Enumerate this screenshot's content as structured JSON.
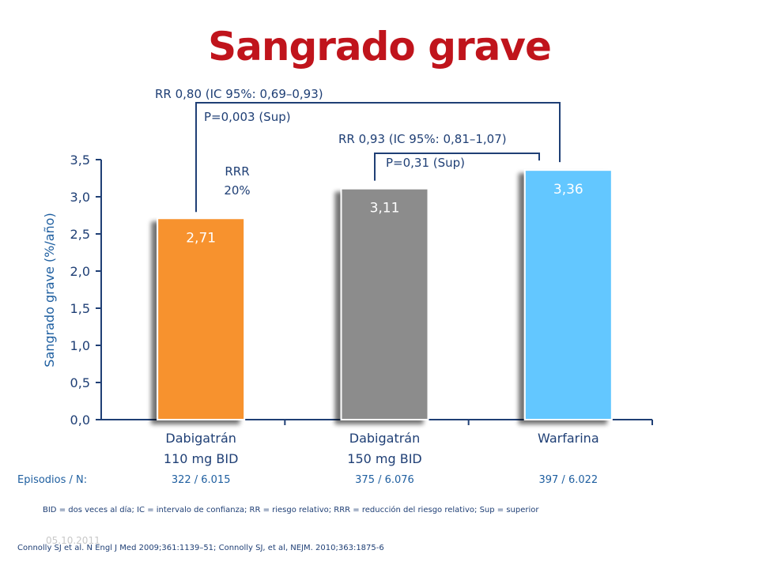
{
  "title": "Sangrado grave",
  "chart_data": {
    "type": "bar",
    "ylabel": "Sangrado grave (%/año)",
    "ylim": [
      0,
      3.5
    ],
    "yticks": [
      "0,0",
      "0,5",
      "1,0",
      "1,5",
      "2,0",
      "2,5",
      "3,0",
      "3,5"
    ],
    "grid": false,
    "categories": [
      {
        "line1": "Dabigatrán",
        "line2": "110 mg BID"
      },
      {
        "line1": "Dabigatrán",
        "line2": "150 mg BID"
      },
      {
        "line1": "Warfarina",
        "line2": ""
      }
    ],
    "values": [
      2.71,
      3.11,
      3.36
    ],
    "value_labels": [
      "2,71",
      "3,11",
      "3,36"
    ],
    "colors": [
      "#f7922f",
      "#8c8c8c",
      "#63c7ff"
    ],
    "annotations": {
      "rr1": "RR 0,80 (IC 95%: 0,69–0,93)",
      "p1": "P=0,003 (Sup)",
      "rr2": "RR 0,93 (IC 95%: 0,81–1,07)",
      "p2": "P=0,31 (Sup)",
      "rrr_line1": "RRR",
      "rrr_line2": "20%"
    },
    "episodes": {
      "label": "Episodios / N:",
      "values": [
        "322 / 6.015",
        "375 / 6.076",
        "397 / 6.022"
      ]
    }
  },
  "footnote": "BID = dos veces al día; IC = intervalo de confianza; RR = riesgo relativo; RRR = reducción del riesgo relativo; Sup = superior",
  "reference": "Connolly SJ et al. N Engl J Med 2009;361:1139–51; Connolly SJ, et al, NEJM. 2010;363:1875-6",
  "date": "05.10.2011"
}
